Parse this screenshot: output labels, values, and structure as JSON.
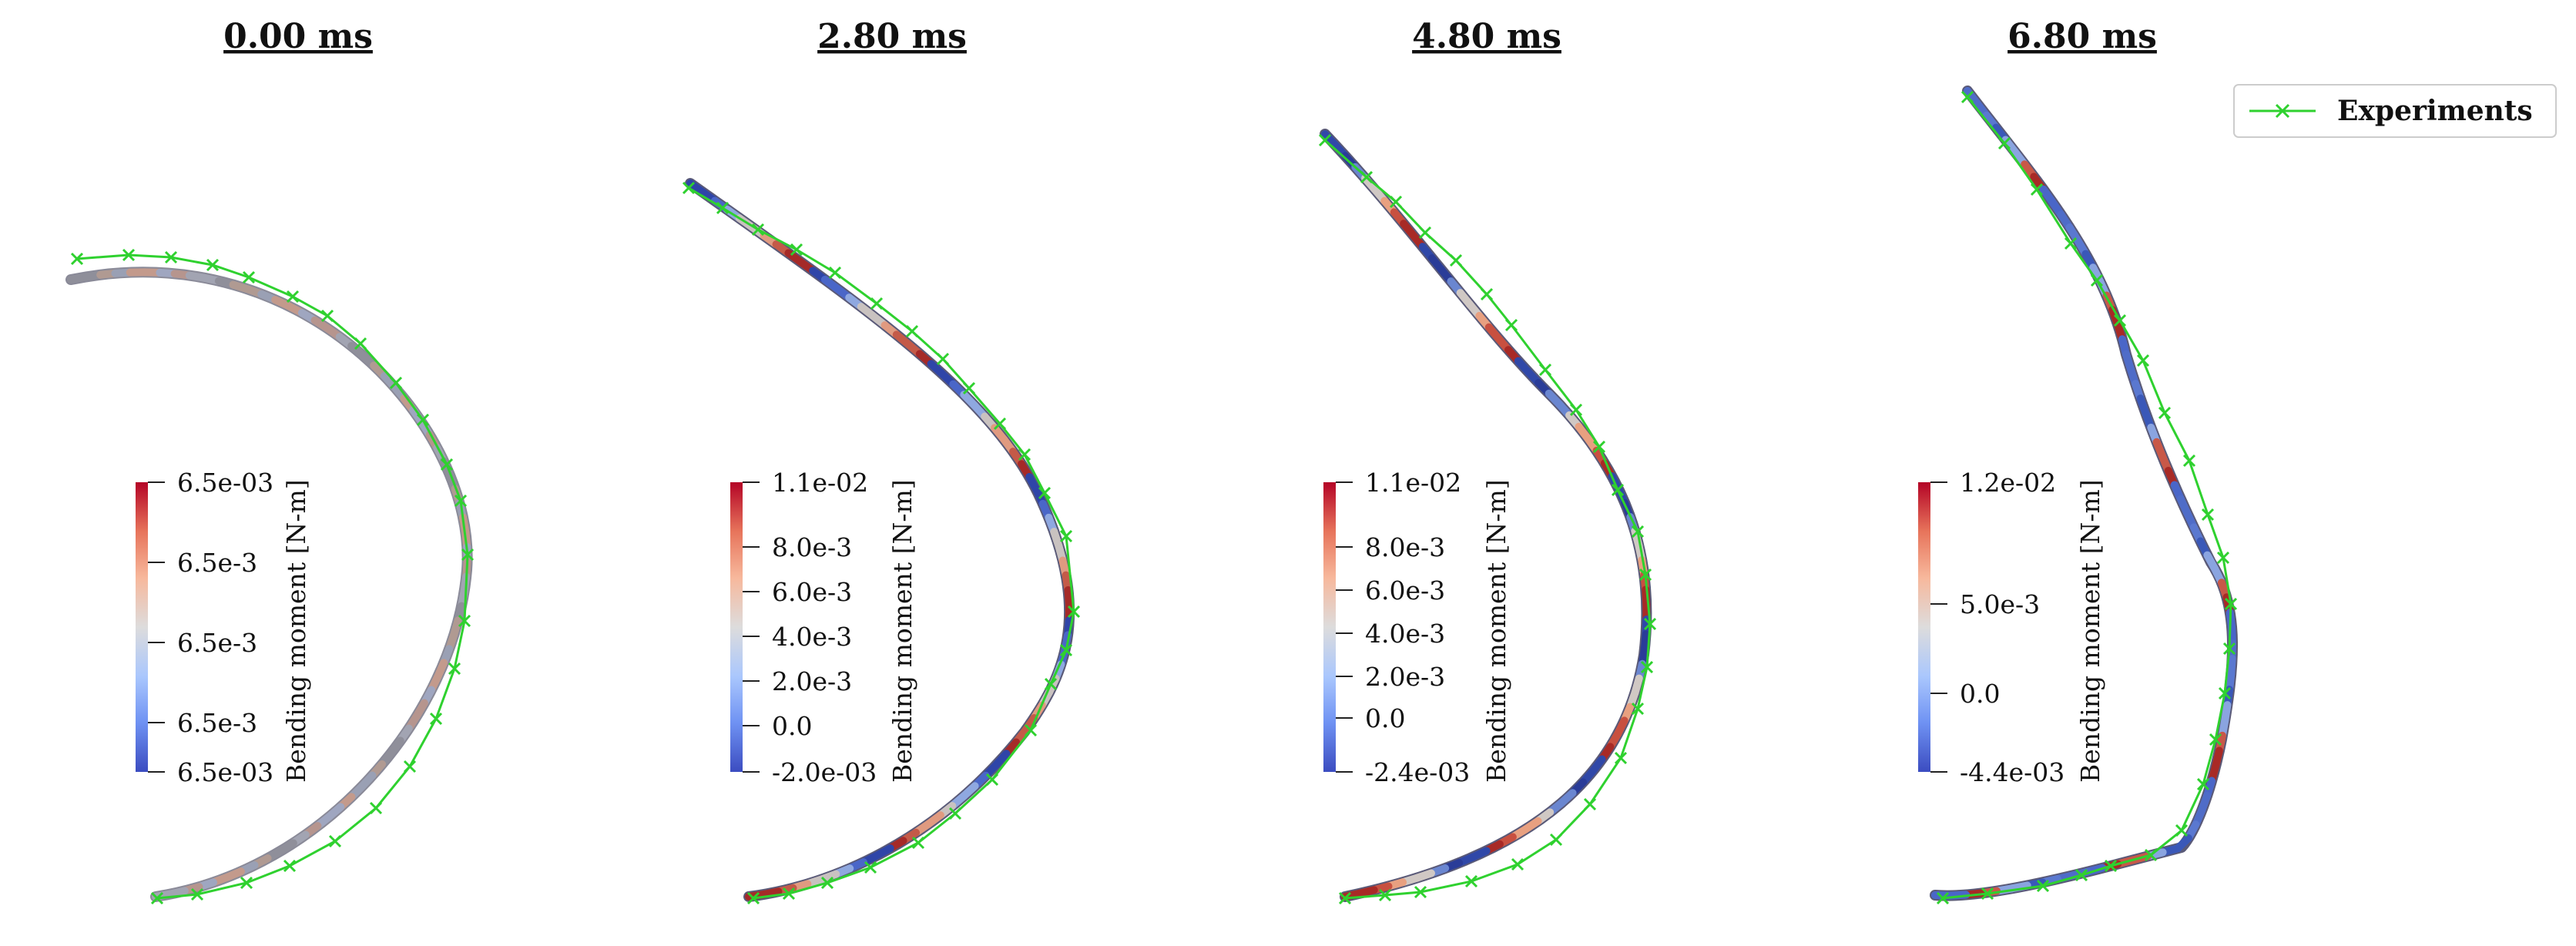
{
  "legend": {
    "label": "Experiments",
    "color": "#2fd12f",
    "marker": "x-marker"
  },
  "colormap": [
    "#3b4cc0",
    "#6f92f3",
    "#aac7fd",
    "#dddcdc",
    "#f7b89c",
    "#e7745b",
    "#b40426"
  ],
  "rod_color_samples": {
    "p0": [
      "#8f8f9a",
      "#b09a92",
      "#9aa0b4",
      "#c39a8c",
      "#9fa6c0",
      "#b6958e",
      "#a2a4b2"
    ],
    "p1": [
      "#2f45a8",
      "#4a66c8",
      "#8fa8e0",
      "#c9c2c0",
      "#e09a80",
      "#c45a48",
      "#a52a28"
    ],
    "p2": [
      "#3048a8",
      "#2a3c98",
      "#6a86d0",
      "#d0c8c4",
      "#e8a080",
      "#c85040",
      "#a82a26"
    ],
    "p3": [
      "#4f6cc8",
      "#5a78d0",
      "#3a58b8",
      "#8aa4e0",
      "#c85848",
      "#a82a26",
      "#4a66c8"
    ]
  },
  "panels": [
    {
      "title": "0.00 ms",
      "colorbar": {
        "title": "Bending moment [N-m]",
        "top_label": "6.5e-03",
        "bottom_label": "6.5e-03",
        "tick_labels": [
          "6.5e-3",
          "6.5e-3",
          "6.5e-3"
        ]
      }
    },
    {
      "title": "2.80 ms",
      "colorbar": {
        "title": "Bending moment [N-m]",
        "top_label": "1.1e-02",
        "bottom_label": "-2.0e-03",
        "tick_labels": [
          "8.0e-3",
          "6.0e-3",
          "4.0e-3",
          "2.0e-3",
          "0.0"
        ]
      }
    },
    {
      "title": "4.80 ms",
      "colorbar": {
        "title": "Bending moment [N-m]",
        "top_label": "1.1e-02",
        "bottom_label": "-2.4e-03",
        "tick_labels": [
          "8.0e-3",
          "6.0e-3",
          "4.0e-3",
          "2.0e-3",
          "0.0"
        ]
      }
    },
    {
      "title": "6.80 ms",
      "colorbar": {
        "title": "Bending moment [N-m]",
        "top_label": "1.2e-02",
        "bottom_label": "-4.4e-03",
        "tick_labels": [
          "5.0e-3",
          "0.0"
        ]
      }
    }
  ]
}
